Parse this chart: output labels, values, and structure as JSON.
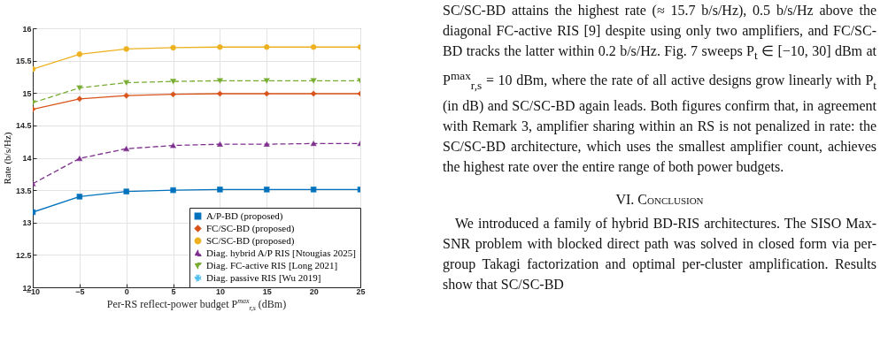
{
  "chart_data": {
    "type": "line",
    "xlabel": "Per-RS reflect-power budget P$^{max}$$_{r,s}$ (dBm)",
    "ylabel": "Rate (b/s/Hz)",
    "x": [
      -10,
      -5,
      0,
      5,
      10,
      15,
      20,
      25
    ],
    "xlim": [
      -10,
      25
    ],
    "xticks": [
      -10,
      -5,
      0,
      5,
      10,
      15,
      20,
      25
    ],
    "ylim": [
      12,
      16
    ],
    "yticks": [
      12,
      12.5,
      13,
      13.5,
      14,
      14.5,
      15,
      15.5,
      16
    ],
    "grid": true,
    "legend": "bottom right",
    "series": [
      {
        "name": "A/P-BD (proposed)",
        "color": "#0072bd",
        "marker": "square",
        "line_style": "solid",
        "values": [
          13.16,
          13.4,
          13.48,
          13.5,
          13.51,
          13.51,
          13.51,
          13.51
        ]
      },
      {
        "name": "FC/SC-BD (proposed)",
        "color": "#d95319",
        "marker": "diamond",
        "line_style": "solid",
        "values": [
          14.75,
          14.91,
          14.96,
          14.98,
          14.99,
          14.99,
          14.99,
          14.99
        ]
      },
      {
        "name": "SC/SC-BD (proposed)",
        "color": "#edb120",
        "marker": "circle",
        "line_style": "solid",
        "values": [
          15.37,
          15.6,
          15.68,
          15.7,
          15.71,
          15.71,
          15.71,
          15.71
        ]
      },
      {
        "name": "Diag. hybrid A/P RIS [Ntougias 2025]",
        "color": "#7e2f8e",
        "marker": "triangle",
        "line_style": "dashed",
        "values": [
          13.6,
          13.99,
          14.14,
          14.19,
          14.21,
          14.21,
          14.22,
          14.22
        ]
      },
      {
        "name": "Diag. FC-active RIS [Long 2021]",
        "color": "#77ac30",
        "marker": "triangle-down",
        "line_style": "dashed",
        "values": [
          14.85,
          15.08,
          15.16,
          15.18,
          15.19,
          15.19,
          15.19,
          15.19
        ]
      },
      {
        "name": "Diag. passive RIS [Wu 2019]",
        "color": "#4dbeee",
        "marker": "cross",
        "line_style": "dotted",
        "values": [
          null,
          null,
          null,
          null,
          null,
          null,
          null,
          null
        ]
      }
    ],
    "annotations": [
      "SC/SC-BD attains the highest rate (≈ 15.7 b/s/Hz), 0.5 b/s/Hz above the diagonal FC-active RIS [9] despite using only two amplifiers, and FC/SC-BD tracks the latter within 0.2 b/s/Hz. Fig. 7 sweeps P$_{t}$ ∈ [−10, 30] dBm at P$^{max}$$_{r,s}$ = 10 dBm, where the rate of all active designs grow linearly with P$_{t}$ (in dB) and SC/SC-BD again leads. Both figures confirm that, in agreement with Remark 3, amplifier sharing within an RS is not penalized in rate: the SC/SC-BD architecture, which uses the smallest amplifier count, achieves the highest rate over the entire range of both power budgets.",
      "VI. Conclusion",
      "We introduced a family of hybrid BD-RIS architectures. The SISO Max-SNR problem with blocked direct path was solved in closed form via per-group Takagi factorization and optimal per-cluster amplification. Results show that SC/SC-BD"
    ]
  }
}
